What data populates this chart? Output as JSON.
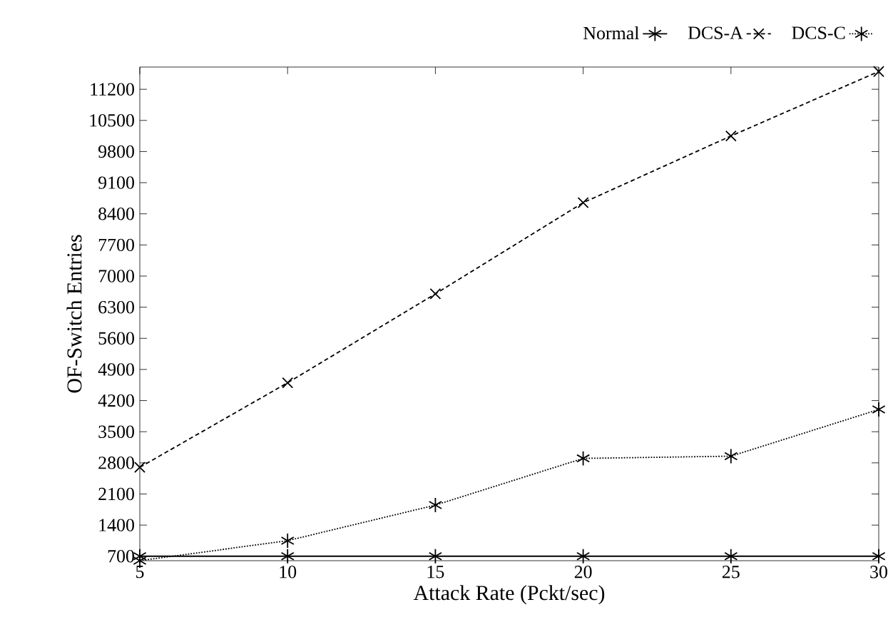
{
  "chart_data": {
    "type": "line",
    "xlabel": "Attack Rate (Pckt/sec)",
    "ylabel": "OF-Switch Entries",
    "x": [
      5,
      10,
      15,
      20,
      25,
      30
    ],
    "series": [
      {
        "name": "Normal",
        "color": "#000000",
        "marker": "cross",
        "line_style": "solid",
        "values": [
          700,
          700,
          700,
          700,
          700,
          700
        ]
      },
      {
        "name": "DCS-A",
        "color": "#000000",
        "marker": "x",
        "line_style": "dashed",
        "values": [
          2700,
          4600,
          6600,
          8650,
          10150,
          11600
        ]
      },
      {
        "name": "DCS-C",
        "color": "#000000",
        "marker": "cross",
        "line_style": "dotted",
        "values": [
          600,
          1050,
          1850,
          2900,
          2950,
          4000
        ]
      }
    ],
    "xlim": [
      5,
      30
    ],
    "xticks": [
      5,
      10,
      15,
      20,
      25,
      30
    ],
    "ylim": [
      600,
      11700
    ],
    "yticks": [
      700,
      1400,
      2100,
      2800,
      3500,
      4200,
      4900,
      5600,
      6300,
      7000,
      7700,
      8400,
      9100,
      9800,
      10500,
      11200
    ],
    "grid": false,
    "legend": "top right"
  }
}
